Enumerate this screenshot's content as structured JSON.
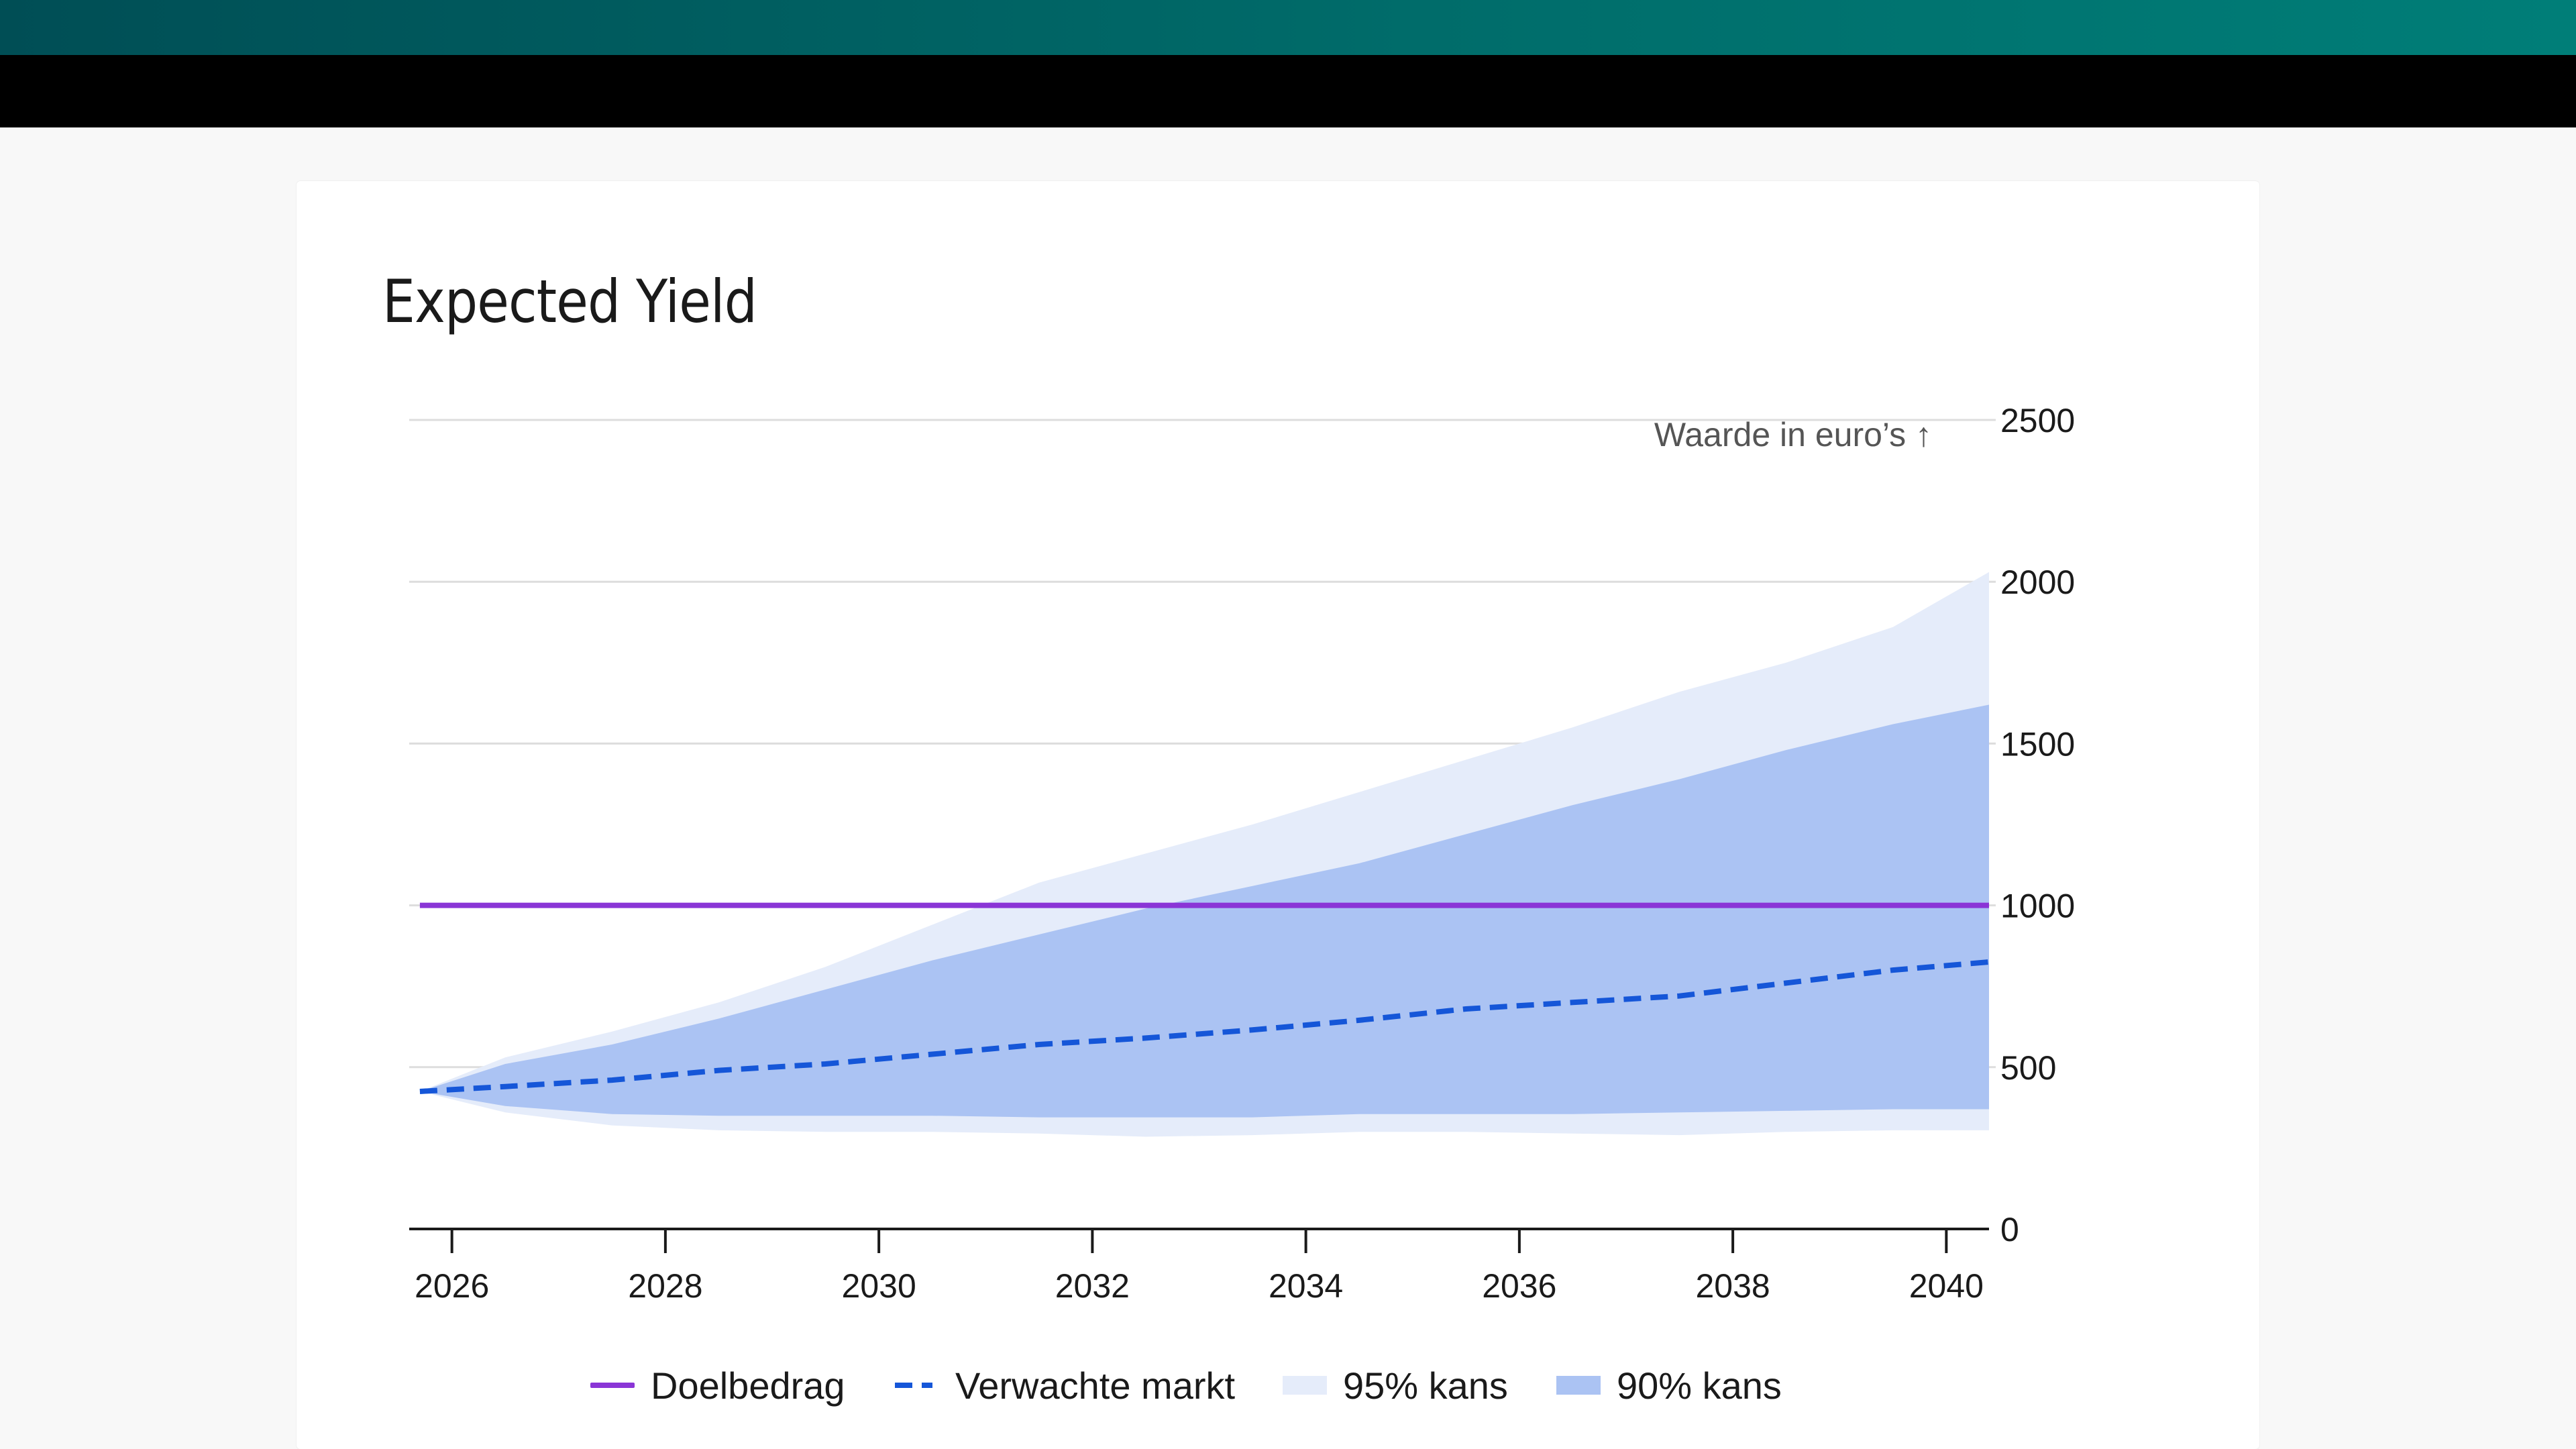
{
  "title": "Expected Yield",
  "chart_data": {
    "type": "area",
    "title": "Expected Yield",
    "ylabel": "Waarde in euro’s ↑",
    "xlabel": "",
    "xlim": [
      2025.6,
      2040.4
    ],
    "ylim": [
      0,
      2500
    ],
    "x_ticks": [
      "2026",
      "2028",
      "2030",
      "2032",
      "2034",
      "2036",
      "2038",
      "2040"
    ],
    "y_ticks": [
      "0",
      "500",
      "1000",
      "1500",
      "2000",
      "2500"
    ],
    "y_axis_position": "right",
    "grid": "horizontal",
    "legend_position": "bottom",
    "x": [
      2025.7,
      2026.5,
      2027.5,
      2028.5,
      2029.5,
      2030.5,
      2031.5,
      2032.5,
      2033.5,
      2034.5,
      2035.5,
      2036.5,
      2037.5,
      2038.5,
      2039.5,
      2040.4
    ],
    "series": [
      {
        "name": "Doelbedrag",
        "kind": "line",
        "color": "#8a35d6",
        "values": [
          1000,
          1000,
          1000,
          1000,
          1000,
          1000,
          1000,
          1000,
          1000,
          1000,
          1000,
          1000,
          1000,
          1000,
          1000,
          1000
        ]
      },
      {
        "name": "Verwachte markt",
        "kind": "dashed-line",
        "color": "#1556d8",
        "values": [
          425,
          440,
          460,
          490,
          510,
          540,
          570,
          590,
          615,
          645,
          680,
          700,
          720,
          760,
          800,
          825
        ]
      },
      {
        "name": "95% kans",
        "kind": "band",
        "color": "#e5ecfa",
        "lower": [
          425,
          360,
          320,
          305,
          300,
          300,
          295,
          285,
          290,
          300,
          300,
          295,
          290,
          300,
          305,
          305
        ],
        "upper": [
          425,
          530,
          610,
          700,
          810,
          940,
          1070,
          1160,
          1250,
          1350,
          1450,
          1550,
          1660,
          1750,
          1860,
          2030
        ]
      },
      {
        "name": "90% kans",
        "kind": "band",
        "color": "#abc3f3",
        "lower": [
          425,
          380,
          355,
          350,
          350,
          350,
          345,
          345,
          345,
          355,
          355,
          355,
          360,
          365,
          370,
          370
        ],
        "upper": [
          425,
          510,
          570,
          650,
          740,
          830,
          910,
          990,
          1060,
          1130,
          1220,
          1310,
          1390,
          1480,
          1560,
          1620
        ]
      }
    ]
  },
  "legend": {
    "doelbedrag": "Doelbedrag",
    "verwachte_markt": "Verwachte markt",
    "kans95": "95% kans",
    "kans90": "90% kans"
  }
}
